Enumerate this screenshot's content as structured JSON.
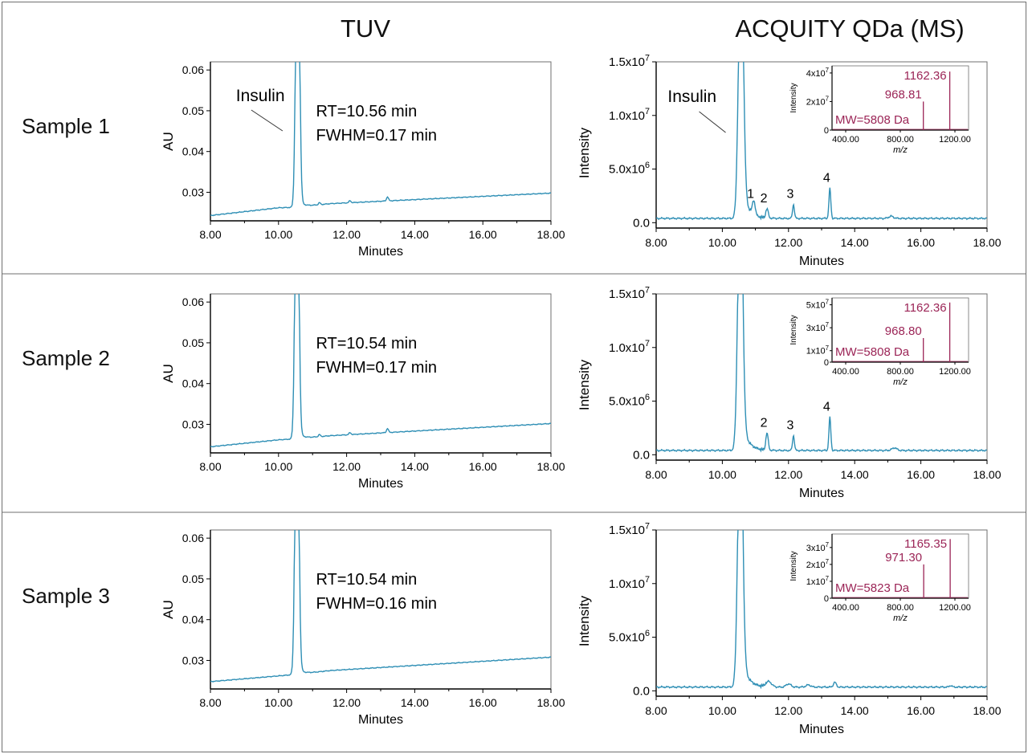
{
  "colors": {
    "trace": "#2f8fb5",
    "inset": "#9b2456",
    "axis": "#000000",
    "frame": "#6f6f6f"
  },
  "headers": {
    "tuv": "TUV",
    "ms": "ACQUITY QDa (MS)"
  },
  "common": {
    "minutes_label": "Minutes",
    "au_label": "AU",
    "intensity_label": "Intensity",
    "insulin_label": "Insulin",
    "x_ticks": [
      "8.00",
      "10.00",
      "12.00",
      "14.00",
      "16.00",
      "18.00"
    ],
    "au_ticks": [
      "0.03",
      "0.04",
      "0.05",
      "0.06"
    ],
    "ms_ticks": [
      {
        "mant": "0.0",
        "exp": ""
      },
      {
        "mant": "5.0x10",
        "exp": "6"
      },
      {
        "mant": "1.0x10",
        "exp": "7"
      },
      {
        "mant": "1.5x10",
        "exp": "7"
      }
    ],
    "inset_x_ticks": [
      "400.00",
      "800.00",
      "1200.00"
    ],
    "inset_ylabel": "Intensity",
    "inset_xlabel": "m/z"
  },
  "chart_data": [
    {
      "type": "line",
      "title": "TUV",
      "xlabel": "Minutes",
      "ylabel": "AU",
      "xlim": [
        8,
        18
      ],
      "ylim": [
        0.023,
        0.062
      ],
      "samples": [
        {
          "name": "Sample 1",
          "peak_rt": 10.56,
          "rt_text": "RT=10.56 min",
          "fwhm_text": "FWHM=0.17 min",
          "insulin_label": true,
          "baseline": [
            [
              8.0,
              0.0243
            ],
            [
              10.0,
              0.0262
            ],
            [
              10.4,
              0.0263
            ],
            [
              11.5,
              0.0272
            ],
            [
              18.0,
              0.0298
            ]
          ],
          "minor_peaks": [
            [
              11.2,
              0.0005
            ],
            [
              12.1,
              0.0005
            ],
            [
              13.2,
              0.001
            ]
          ]
        },
        {
          "name": "Sample 2",
          "peak_rt": 10.54,
          "rt_text": "RT=10.54 min",
          "fwhm_text": "FWHM=0.17 min",
          "insulin_label": false,
          "baseline": [
            [
              8.0,
              0.0245
            ],
            [
              10.0,
              0.0262
            ],
            [
              10.4,
              0.0264
            ],
            [
              11.5,
              0.0272
            ],
            [
              18.0,
              0.0302
            ]
          ],
          "minor_peaks": [
            [
              11.2,
              0.0005
            ],
            [
              12.1,
              0.0005
            ],
            [
              13.2,
              0.001
            ]
          ]
        },
        {
          "name": "Sample 3",
          "peak_rt": 10.54,
          "rt_text": "RT=10.54 min",
          "fwhm_text": "FWHM=0.16 min",
          "insulin_label": false,
          "baseline": [
            [
              8.0,
              0.0248
            ],
            [
              10.0,
              0.0262
            ],
            [
              10.4,
              0.0265
            ],
            [
              11.5,
              0.0275
            ],
            [
              18.0,
              0.0308
            ]
          ],
          "minor_peaks": []
        }
      ]
    },
    {
      "type": "line",
      "title": "ACQUITY QDa (MS)",
      "xlabel": "Minutes",
      "ylabel": "Intensity",
      "xlim": [
        8,
        18
      ],
      "ylim": [
        -500000,
        15000000
      ],
      "samples": [
        {
          "name": "Sample 1",
          "peak_rt": 10.56,
          "insulin_label": true,
          "base": 400000,
          "minor_peaks": [
            [
              10.95,
              1300000,
              0.06,
              "1"
            ],
            [
              11.35,
              900000,
              0.05,
              "2"
            ],
            [
              12.15,
              1300000,
              0.04,
              "3"
            ],
            [
              13.25,
              2800000,
              0.04,
              "4"
            ],
            [
              15.1,
              200000,
              0.1,
              ""
            ]
          ],
          "inset": {
            "ylim": [
              0,
              45000000
            ],
            "y_ticks": [
              {
                "v": 0,
                "t": "0"
              },
              {
                "v": 20000000,
                "t": "2x10",
                "e": "7"
              },
              {
                "v": 40000000,
                "t": "4x10",
                "e": "7"
              }
            ],
            "peaks": [
              [
                968.81,
                20000000
              ],
              [
                1162.36,
                41000000
              ]
            ],
            "labels": [
              "968.81",
              "1162.36"
            ],
            "mw_text": "MW=5808 Da"
          }
        },
        {
          "name": "Sample 2",
          "peak_rt": 10.54,
          "insulin_label": false,
          "base": 400000,
          "minor_peaks": [
            [
              11.35,
              1600000,
              0.05,
              "2"
            ],
            [
              12.15,
              1400000,
              0.04,
              "3"
            ],
            [
              13.25,
              3100000,
              0.04,
              "4"
            ],
            [
              15.2,
              250000,
              0.1,
              ""
            ]
          ],
          "inset": {
            "ylim": [
              0,
              56000000
            ],
            "y_ticks": [
              {
                "v": 0,
                "t": "0"
              },
              {
                "v": 10000000,
                "t": "1x10",
                "e": "7"
              },
              {
                "v": 30000000,
                "t": "3x10",
                "e": "7"
              },
              {
                "v": 50000000,
                "t": "5x10",
                "e": "7"
              }
            ],
            "peaks": [
              [
                968.8,
                21000000
              ],
              [
                1162.36,
                52000000
              ]
            ],
            "labels": [
              "968.80",
              "1162.36"
            ],
            "mw_text": "MW=5808 Da"
          }
        },
        {
          "name": "Sample 3",
          "peak_rt": 10.54,
          "insulin_label": false,
          "base": 350000,
          "minor_peaks": [
            [
              11.4,
              500000,
              0.12,
              ""
            ],
            [
              12.0,
              300000,
              0.1,
              ""
            ],
            [
              12.6,
              200000,
              0.1,
              ""
            ],
            [
              13.4,
              450000,
              0.06,
              ""
            ],
            [
              16.9,
              150000,
              0.05,
              ""
            ]
          ],
          "inset": {
            "ylim": [
              0,
              38000000
            ],
            "y_ticks": [
              {
                "v": 0,
                "t": "0"
              },
              {
                "v": 10000000,
                "t": "1x10",
                "e": "7"
              },
              {
                "v": 20000000,
                "t": "2x10",
                "e": "7"
              },
              {
                "v": 30000000,
                "t": "3x10",
                "e": "7"
              }
            ],
            "peaks": [
              [
                971.3,
                20000000
              ],
              [
                1165.35,
                35000000
              ]
            ],
            "labels": [
              "971.30",
              "1165.35"
            ],
            "mw_text": "MW=5823 Da"
          }
        }
      ]
    }
  ]
}
